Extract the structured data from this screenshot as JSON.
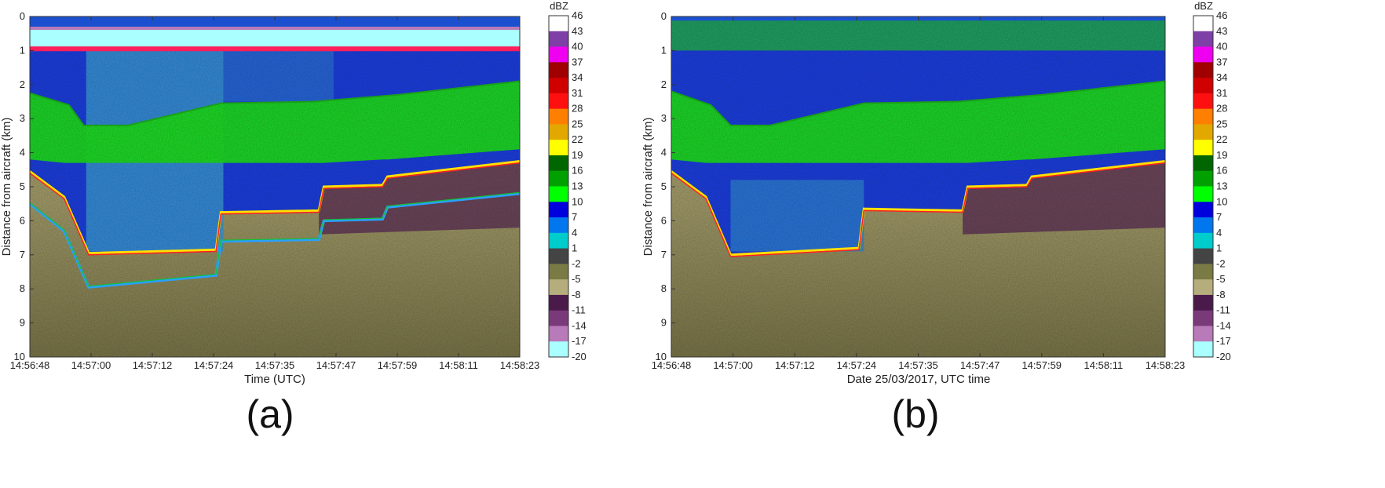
{
  "chart_data": [
    {
      "type": "heatmap",
      "panel_label": "(a)",
      "xlabel": "Time (UTC)",
      "ylabel": "Distance from aircraft (km)",
      "x_ticks": [
        "14:56:48",
        "14:57:00",
        "14:57:12",
        "14:57:24",
        "14:57:35",
        "14:57:47",
        "14:57:59",
        "14:58:11",
        "14:58:23"
      ],
      "y_ticks": [
        0,
        1,
        2,
        3,
        4,
        5,
        6,
        7,
        8,
        9,
        10
      ],
      "ylim": [
        0,
        10
      ],
      "y_reversed": true,
      "colorbar": {
        "label": "dBZ",
        "ticks": [
          46,
          43,
          40,
          37,
          34,
          31,
          28,
          25,
          22,
          19,
          16,
          13,
          10,
          7,
          4,
          1,
          -2,
          -5,
          -8,
          -11,
          -14,
          -17,
          -20
        ]
      },
      "features": [
        {
          "name": "upper reflectivity layer top",
          "x": [
            0,
            0.08,
            0.11,
            0.2,
            0.39,
            0.58,
            0.75,
            1.0
          ],
          "y": [
            2.25,
            2.6,
            3.2,
            3.2,
            2.55,
            2.5,
            2.3,
            1.9
          ]
        },
        {
          "name": "surface echo",
          "x": [
            0,
            0.07,
            0.12,
            0.38,
            0.39,
            0.59,
            0.6,
            0.72,
            0.73,
            1.0
          ],
          "y": [
            4.55,
            5.3,
            6.95,
            6.85,
            5.75,
            5.7,
            5.0,
            4.95,
            4.7,
            4.25
          ]
        },
        {
          "name": "second trip echo",
          "x": [
            0,
            0.07,
            0.12,
            0.38,
            0.39,
            0.59,
            0.6,
            0.72,
            0.73,
            1.0
          ],
          "y": [
            5.5,
            6.3,
            7.95,
            7.6,
            6.6,
            6.55,
            6.0,
            5.95,
            5.6,
            5.2
          ]
        }
      ]
    },
    {
      "type": "heatmap",
      "panel_label": "(b)",
      "xlabel": "Date 25/03/2017, UTC time",
      "ylabel": "Distance from aircraft (km)",
      "x_ticks": [
        "14:56:48",
        "14:57:00",
        "14:57:12",
        "14:57:24",
        "14:57:35",
        "14:57:47",
        "14:57:59",
        "14:58:11",
        "14:58:23"
      ],
      "y_ticks": [
        0,
        1,
        2,
        3,
        4,
        5,
        6,
        7,
        8,
        9,
        10
      ],
      "ylim": [
        0,
        10
      ],
      "y_reversed": true,
      "colorbar": {
        "label": "dBZ",
        "ticks": [
          46,
          43,
          40,
          37,
          34,
          31,
          28,
          25,
          22,
          19,
          16,
          13,
          10,
          7,
          4,
          1,
          -2,
          -5,
          -8,
          -11,
          -14,
          -17,
          -20
        ]
      },
      "features": [
        {
          "name": "upper reflectivity layer top",
          "x": [
            0,
            0.08,
            0.12,
            0.2,
            0.39,
            0.58,
            0.75,
            1.0
          ],
          "y": [
            2.2,
            2.6,
            3.2,
            3.2,
            2.55,
            2.5,
            2.3,
            1.9
          ]
        },
        {
          "name": "surface echo",
          "x": [
            0,
            0.07,
            0.12,
            0.38,
            0.39,
            0.59,
            0.6,
            0.72,
            0.73,
            1.0
          ],
          "y": [
            4.55,
            5.3,
            7.0,
            6.8,
            5.65,
            5.7,
            5.0,
            4.95,
            4.7,
            4.25
          ]
        }
      ]
    }
  ],
  "colormap": [
    "#ffffff",
    "#7e3fa6",
    "#f000f0",
    "#a00000",
    "#d00000",
    "#ff1010",
    "#ff7f00",
    "#e3a800",
    "#ffff00",
    "#006600",
    "#00a000",
    "#00ff00",
    "#0000dd",
    "#0077ee",
    "#00cccc",
    "#444444",
    "#7a7a45",
    "#b5ae7c",
    "#4a1a4a",
    "#7a3a7a",
    "#b87ab8",
    "#aaffff"
  ]
}
